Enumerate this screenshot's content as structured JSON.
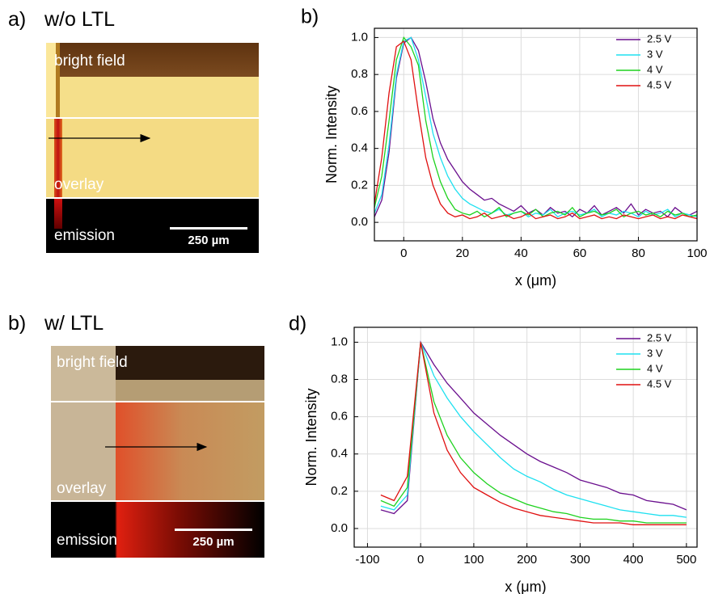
{
  "chart_data": [
    {
      "type": "line",
      "panel_label": "b)",
      "xlabel": "x (μm)",
      "ylabel": "Norm. Intensity",
      "x": [
        -10,
        -7.5,
        -5,
        -2.5,
        0,
        2.5,
        5,
        7.5,
        10,
        12.5,
        15,
        17.5,
        20,
        22.5,
        25,
        27.5,
        30,
        32.5,
        35,
        37.5,
        40,
        42.5,
        45,
        47.5,
        50,
        52.5,
        55,
        57.5,
        60,
        62.5,
        65,
        67.5,
        70,
        72.5,
        75,
        77.5,
        80,
        82.5,
        85,
        87.5,
        90,
        92.5,
        95,
        97.5,
        100
      ],
      "series": [
        {
          "name": "2.5 V",
          "color": "#6a0f8e",
          "values": [
            0.03,
            0.12,
            0.38,
            0.78,
            0.97,
            1.0,
            0.93,
            0.76,
            0.56,
            0.43,
            0.34,
            0.28,
            0.22,
            0.18,
            0.15,
            0.12,
            0.13,
            0.1,
            0.08,
            0.06,
            0.09,
            0.05,
            0.07,
            0.04,
            0.08,
            0.05,
            0.06,
            0.03,
            0.07,
            0.05,
            0.09,
            0.04,
            0.06,
            0.08,
            0.05,
            0.1,
            0.04,
            0.07,
            0.05,
            0.06,
            0.03,
            0.08,
            0.05,
            0.04,
            0.06
          ]
        },
        {
          "name": "3 V",
          "color": "#1ee0f0",
          "values": [
            0.05,
            0.15,
            0.42,
            0.8,
            0.98,
            1.0,
            0.88,
            0.68,
            0.48,
            0.35,
            0.25,
            0.18,
            0.13,
            0.1,
            0.08,
            0.06,
            0.05,
            0.07,
            0.04,
            0.05,
            0.06,
            0.03,
            0.05,
            0.04,
            0.07,
            0.03,
            0.05,
            0.06,
            0.04,
            0.05,
            0.07,
            0.03,
            0.05,
            0.04,
            0.06,
            0.05,
            0.03,
            0.06,
            0.04,
            0.05,
            0.07,
            0.03,
            0.05,
            0.04,
            0.03
          ]
        },
        {
          "name": "4 V",
          "color": "#1ed21e",
          "values": [
            0.08,
            0.25,
            0.55,
            0.88,
            1.0,
            0.95,
            0.85,
            0.55,
            0.35,
            0.22,
            0.13,
            0.07,
            0.05,
            0.04,
            0.06,
            0.03,
            0.05,
            0.08,
            0.03,
            0.05,
            0.06,
            0.04,
            0.07,
            0.03,
            0.05,
            0.06,
            0.04,
            0.08,
            0.03,
            0.05,
            0.06,
            0.04,
            0.05,
            0.07,
            0.03,
            0.05,
            0.06,
            0.04,
            0.05,
            0.03,
            0.06,
            0.04,
            0.05,
            0.03,
            0.04
          ]
        },
        {
          "name": "4.5 V",
          "color": "#e01010",
          "values": [
            0.1,
            0.35,
            0.7,
            0.95,
            0.98,
            0.88,
            0.6,
            0.35,
            0.2,
            0.1,
            0.05,
            0.03,
            0.04,
            0.02,
            0.03,
            0.05,
            0.02,
            0.03,
            0.04,
            0.02,
            0.03,
            0.05,
            0.02,
            0.03,
            0.04,
            0.02,
            0.03,
            0.05,
            0.02,
            0.03,
            0.04,
            0.02,
            0.03,
            0.02,
            0.04,
            0.03,
            0.02,
            0.03,
            0.04,
            0.02,
            0.03,
            0.02,
            0.04,
            0.03,
            0.02
          ]
        }
      ],
      "xlim": [
        -10,
        100
      ],
      "xticks": [
        0,
        20,
        40,
        60,
        80,
        100
      ],
      "ylim": [
        -0.1,
        1.05
      ],
      "yticks": [
        {
          "value": 0,
          "label": "0.0"
        },
        {
          "value": 0.2,
          "label": "0.2"
        },
        {
          "value": 0.4,
          "label": "0.4"
        },
        {
          "value": 0.6,
          "label": "0.6"
        },
        {
          "value": 0.8,
          "label": "0.8"
        },
        {
          "value": 1,
          "label": "1.0"
        }
      ],
      "grid": true,
      "legend": "upper right"
    },
    {
      "type": "line",
      "panel_label": "d)",
      "xlabel": "x (μm)",
      "ylabel": "Norm. Intensity",
      "x": [
        -75,
        -50,
        -25,
        0,
        25,
        50,
        75,
        100,
        125,
        150,
        175,
        200,
        225,
        250,
        275,
        300,
        325,
        350,
        375,
        400,
        425,
        450,
        475,
        500
      ],
      "series": [
        {
          "name": "2.5 V",
          "color": "#6a0f8e",
          "values": [
            0.1,
            0.08,
            0.15,
            1.0,
            0.88,
            0.78,
            0.7,
            0.62,
            0.56,
            0.5,
            0.45,
            0.4,
            0.36,
            0.33,
            0.3,
            0.26,
            0.24,
            0.22,
            0.19,
            0.18,
            0.15,
            0.14,
            0.13,
            0.1
          ]
        },
        {
          "name": "3 V",
          "color": "#1ee0f0",
          "values": [
            0.12,
            0.1,
            0.18,
            1.0,
            0.82,
            0.7,
            0.6,
            0.52,
            0.45,
            0.38,
            0.32,
            0.28,
            0.25,
            0.21,
            0.18,
            0.16,
            0.14,
            0.12,
            0.1,
            0.09,
            0.08,
            0.07,
            0.07,
            0.06
          ]
        },
        {
          "name": "4 V",
          "color": "#1ed21e",
          "values": [
            0.15,
            0.12,
            0.22,
            1.0,
            0.68,
            0.5,
            0.38,
            0.3,
            0.24,
            0.19,
            0.16,
            0.13,
            0.11,
            0.09,
            0.08,
            0.06,
            0.05,
            0.05,
            0.04,
            0.04,
            0.03,
            0.03,
            0.03,
            0.03
          ]
        },
        {
          "name": "4.5 V",
          "color": "#e01010",
          "values": [
            0.18,
            0.15,
            0.28,
            1.0,
            0.62,
            0.42,
            0.3,
            0.22,
            0.18,
            0.14,
            0.11,
            0.09,
            0.07,
            0.06,
            0.05,
            0.04,
            0.03,
            0.03,
            0.03,
            0.02,
            0.02,
            0.02,
            0.02,
            0.02
          ]
        }
      ],
      "xlim": [
        -125,
        520
      ],
      "xticks": [
        -100,
        0,
        100,
        200,
        300,
        400,
        500
      ],
      "ylim": [
        -0.1,
        1.08
      ],
      "yticks": [
        {
          "value": 0,
          "label": "0.0"
        },
        {
          "value": 0.2,
          "label": "0.2"
        },
        {
          "value": 0.4,
          "label": "0.4"
        },
        {
          "value": 0.6,
          "label": "0.6"
        },
        {
          "value": 0.8,
          "label": "0.8"
        },
        {
          "value": 1,
          "label": "1.0"
        }
      ],
      "grid": true,
      "legend": "upper right"
    }
  ],
  "panels": [
    {
      "label": "a)",
      "title": "w/o LTL",
      "top_text": "bright field",
      "middle_text": "overlay",
      "bottom_text": "emission",
      "scale_bar": "250 µm"
    },
    {
      "label": "b)",
      "title": "w/ LTL",
      "top_text": "bright field",
      "middle_text": "overlay",
      "bottom_text": "emission",
      "scale_bar": "250 µm"
    }
  ]
}
